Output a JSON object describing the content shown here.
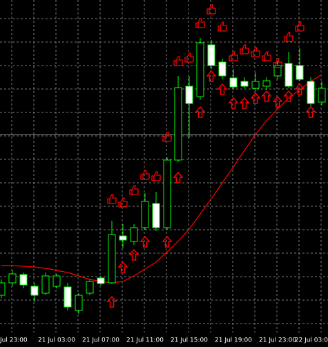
{
  "chart_data": {
    "type": "candlestick",
    "categories": [
      null,
      "Jul 23:00",
      null,
      null,
      null,
      "21 Jul 03:00",
      null,
      null,
      null,
      "21 Jul 07:00",
      null,
      null,
      null,
      "21 Jul 11:00",
      null,
      null,
      null,
      "21 Jul 15:00",
      null,
      null,
      null,
      "21 Jul 19:00",
      null,
      null,
      null,
      "21 Jul 23:00",
      null,
      null,
      null,
      "22 Jul 03:0"
    ],
    "open": [
      52,
      70,
      82,
      65,
      55,
      65,
      64,
      30,
      55,
      77,
      70,
      138,
      130,
      150,
      185,
      150,
      248,
      355,
      340,
      415,
      390,
      367,
      362,
      352,
      355,
      370,
      388,
      385,
      362,
      332
    ],
    "high": [
      75,
      88,
      85,
      70,
      85,
      83,
      70,
      55,
      75,
      80,
      160,
      155,
      155,
      200,
      202,
      252,
      370,
      370,
      425,
      422,
      395,
      380,
      368,
      375,
      368,
      392,
      405,
      410,
      368,
      362
    ],
    "low": [
      48,
      65,
      62,
      42,
      52,
      62,
      30,
      25,
      52,
      66,
      68,
      120,
      125,
      147,
      145,
      147,
      245,
      280,
      335,
      380,
      365,
      350,
      352,
      348,
      350,
      365,
      352,
      362,
      325,
      328
    ],
    "close": [
      70,
      83,
      67,
      52,
      80,
      80,
      35,
      52,
      72,
      69,
      140,
      132,
      150,
      188,
      150,
      248,
      353,
      330,
      418,
      385,
      370,
      354,
      355,
      362,
      363,
      385,
      355,
      365,
      330,
      352
    ],
    "ma": {
      "color": "#ff0000",
      "values": [
        95,
        95,
        94,
        93,
        91,
        88,
        85,
        80,
        75,
        72,
        70,
        72,
        80,
        90,
        100,
        115,
        130,
        148,
        170,
        192,
        215,
        238,
        262,
        285,
        305,
        322,
        338,
        350,
        362,
        372
      ]
    },
    "buy_arrows": [
      null,
      null,
      null,
      null,
      null,
      null,
      null,
      null,
      null,
      null,
      50,
      100,
      118,
      137,
      null,
      137,
      230,
      null,
      325,
      377,
      358,
      338,
      338,
      345,
      348,
      340,
      348,
      358,
      325,
      null
    ],
    "thumbs_up": [
      null,
      null,
      null,
      null,
      null,
      null,
      null,
      null,
      null,
      null,
      185,
      180,
      198,
      220,
      218,
      275,
      385,
      390,
      440,
      460,
      435,
      392,
      402,
      398,
      392,
      382,
      420,
      435,
      null,
      null
    ],
    "up_color": "#00ff00",
    "down_color": "#ffffff",
    "signal_color": "#ff0000",
    "ylim": [
      0,
      480
    ],
    "grid": true
  }
}
